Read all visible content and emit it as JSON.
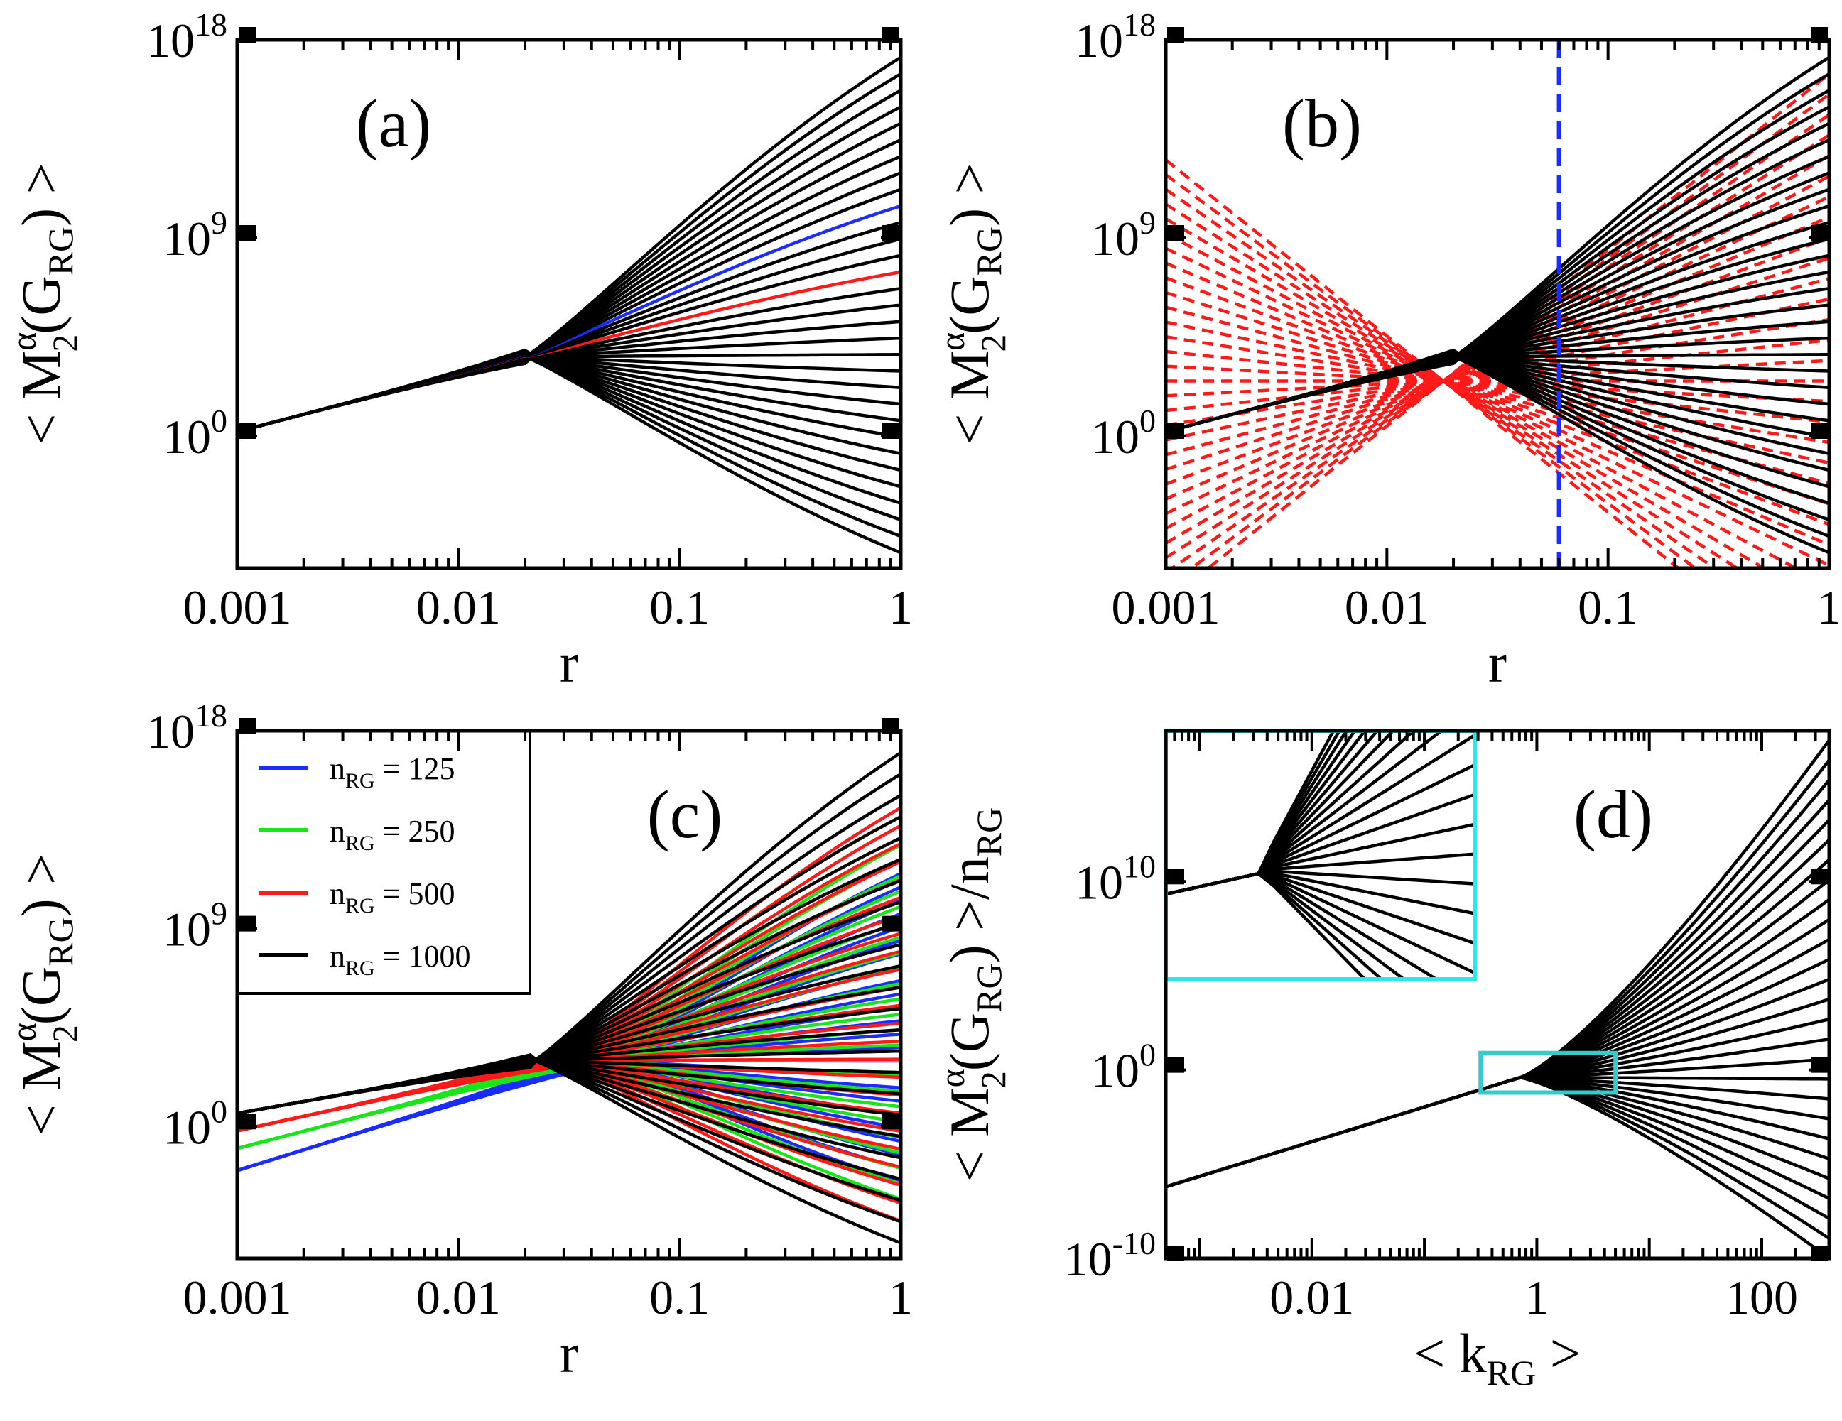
{
  "chart_data": [
    {
      "id": "a",
      "type": "line",
      "panel_label": "(a)",
      "xlabel": "r",
      "ylabel": {
        "open": "< M",
        "sup": "α",
        "sub": "2",
        "mid": "(G",
        "sub2": "RG",
        "close": ") >"
      },
      "xscale": "log",
      "yscale": "log",
      "xlim": [
        0.001,
        1
      ],
      "ylim_exp": [
        -6,
        18
      ],
      "x_ticks": [
        "0.001",
        "0.01",
        "0.1",
        "1"
      ],
      "y_ticks": [
        {
          "base": "10",
          "exp": "0"
        },
        {
          "base": "10",
          "exp": "9"
        },
        {
          "base": "10",
          "exp": "18"
        }
      ],
      "curve_family": {
        "count": 31,
        "start_exp": 0.2,
        "cross_r": 0.02,
        "cross_exp": 3.6,
        "slope_low": 0.6,
        "end_exp_max": 17.2,
        "end_exp_min": -5.3
      },
      "highlight": [
        {
          "color": "#1b2cff",
          "index": 21
        },
        {
          "color": "#ff1a1a",
          "index": 17
        }
      ],
      "colors": {
        "main": "#000000"
      }
    },
    {
      "id": "b",
      "type": "line",
      "panel_label": "(b)",
      "xlabel": "r",
      "ylabel": {
        "open": "< M",
        "sup": "α",
        "sub": "2",
        "mid": "(G",
        "sub2": "RG",
        "close": ") >"
      },
      "xscale": "log",
      "yscale": "log",
      "xlim": [
        0.001,
        1
      ],
      "ylim_exp": [
        -6,
        18
      ],
      "x_ticks": [
        "0.001",
        "0.01",
        "0.1",
        "1"
      ],
      "y_ticks": [
        {
          "base": "10",
          "exp": "0"
        },
        {
          "base": "10",
          "exp": "9"
        },
        {
          "base": "10",
          "exp": "18"
        }
      ],
      "curve_family": {
        "count": 31,
        "start_exp": 0.2,
        "cross_r": 0.02,
        "cross_exp": 3.6,
        "slope_low": 0.6,
        "end_exp_max": 17.2,
        "end_exp_min": -5.3
      },
      "fit_lines": {
        "count": 31,
        "pivot_r": 0.018,
        "pivot_exp": 2.5,
        "color": "#ff1a1a"
      },
      "vline": {
        "x": 0.06,
        "color": "#1b2cff"
      },
      "colors": {
        "main": "#000000"
      }
    },
    {
      "id": "c",
      "type": "line",
      "panel_label": "(c)",
      "xlabel": "r",
      "ylabel": {
        "open": "< M",
        "sup": "α",
        "sub": "2",
        "mid": "(G",
        "sub2": "RG",
        "close": ") >"
      },
      "xscale": "log",
      "yscale": "log",
      "xlim": [
        0.001,
        1
      ],
      "ylim_exp": [
        -6,
        18
      ],
      "x_ticks": [
        "0.001",
        "0.01",
        "0.1",
        "1"
      ],
      "y_ticks": [
        {
          "base": "10",
          "exp": "0"
        },
        {
          "base": "10",
          "exp": "9"
        },
        {
          "base": "10",
          "exp": "18"
        }
      ],
      "series": [
        {
          "name": "n",
          "sub": "RG",
          "eq": " = 125",
          "color": "#1b2cff",
          "start_exp": -2.0,
          "cross_r": 0.04,
          "end_exp_max": 11.5,
          "end_exp_min": -2.5
        },
        {
          "name": "n",
          "sub": "RG",
          "eq": " = 250",
          "color": "#19e619",
          "start_exp": -1.0,
          "cross_r": 0.034,
          "end_exp_max": 12.8,
          "end_exp_min": -3.3
        },
        {
          "name": "n",
          "sub": "RG",
          "eq": " = 500",
          "color": "#ff1a1a",
          "start_exp": -0.2,
          "cross_r": 0.028,
          "end_exp_max": 14.5,
          "end_exp_min": -4.3
        },
        {
          "name": "n",
          "sub": "RG",
          "eq": " = 1000",
          "color": "#000000",
          "start_exp": 0.6,
          "cross_r": 0.022,
          "end_exp_max": 17.0,
          "end_exp_min": -5.3
        }
      ],
      "curve_count": 24,
      "legend": "top-left"
    },
    {
      "id": "d",
      "type": "line",
      "panel_label": "(d)",
      "xlabel": {
        "open": "< k",
        "sub": "RG",
        "close": " >"
      },
      "ylabel": {
        "open": "< M",
        "sup": "α",
        "sub": "2",
        "mid": "(G",
        "sub2": "RG",
        "close": ") >/n",
        "sub3": "RG"
      },
      "xscale": "log",
      "yscale": "log",
      "xlim_exp": [
        -3.3,
        2.6
      ],
      "ylim_exp": [
        -10,
        18
      ],
      "x_ticks": [
        "0.01",
        "1",
        "100"
      ],
      "y_ticks": [
        {
          "base": "10",
          "exp": "-10"
        },
        {
          "base": "10",
          "exp": "0"
        },
        {
          "base": "10",
          "exp": "10"
        }
      ],
      "curve_family": {
        "count": 27,
        "start_exp": -6.2,
        "cross_x_exp": -0.15,
        "cross_exp": -0.4,
        "end_exp_max": 17.5,
        "end_exp_min": -10.0
      },
      "inset": {
        "color": "#33e6e6"
      },
      "zoom_box": {
        "color": "#33cccc"
      },
      "colors": {
        "main": "#000000"
      }
    }
  ]
}
